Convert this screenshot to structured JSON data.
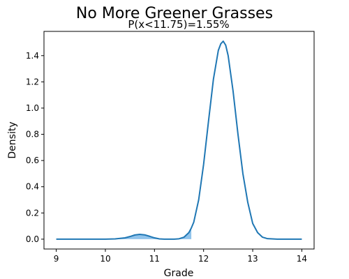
{
  "chart_data": {
    "type": "line",
    "title": "No More Greener Grasses",
    "subtitle": "P(x<11.75)=1.55%",
    "xlabel": "Grade",
    "ylabel": "Density",
    "xlim": [
      8.75,
      14.25
    ],
    "ylim": [
      -0.075,
      1.585
    ],
    "x_ticks": [
      9,
      10,
      11,
      12,
      13,
      14
    ],
    "x_tick_labels": [
      "9",
      "10",
      "11",
      "12",
      "13",
      "14"
    ],
    "y_ticks": [
      0.0,
      0.2,
      0.4,
      0.6,
      0.8,
      1.0,
      1.2,
      1.4
    ],
    "y_tick_labels": [
      "0.0",
      "0.2",
      "0.4",
      "0.6",
      "0.8",
      "1.0",
      "1.2",
      "1.4"
    ],
    "grid": false,
    "series": [
      {
        "color": "#1f77b4",
        "x": [
          9.0,
          9.5,
          10.0,
          10.2,
          10.4,
          10.5,
          10.6,
          10.7,
          10.8,
          10.9,
          11.0,
          11.1,
          11.2,
          11.3,
          11.4,
          11.5,
          11.6,
          11.7,
          11.75,
          11.8,
          11.9,
          12.0,
          12.1,
          12.2,
          12.3,
          12.35,
          12.4,
          12.45,
          12.5,
          12.6,
          12.7,
          12.8,
          12.9,
          13.0,
          13.1,
          13.2,
          13.3,
          13.5,
          14.0
        ],
        "y": [
          0.0,
          0.0,
          0.0,
          0.002,
          0.01,
          0.02,
          0.032,
          0.037,
          0.033,
          0.022,
          0.01,
          0.002,
          0.0,
          0.0,
          0.0,
          0.003,
          0.015,
          0.05,
          0.085,
          0.13,
          0.3,
          0.57,
          0.9,
          1.22,
          1.44,
          1.49,
          1.51,
          1.48,
          1.4,
          1.13,
          0.8,
          0.5,
          0.28,
          0.12,
          0.05,
          0.015,
          0.004,
          0.0,
          0.0
        ]
      }
    ],
    "shaded_region": {
      "color": "#7db9e8",
      "x_max": 11.75
    }
  }
}
